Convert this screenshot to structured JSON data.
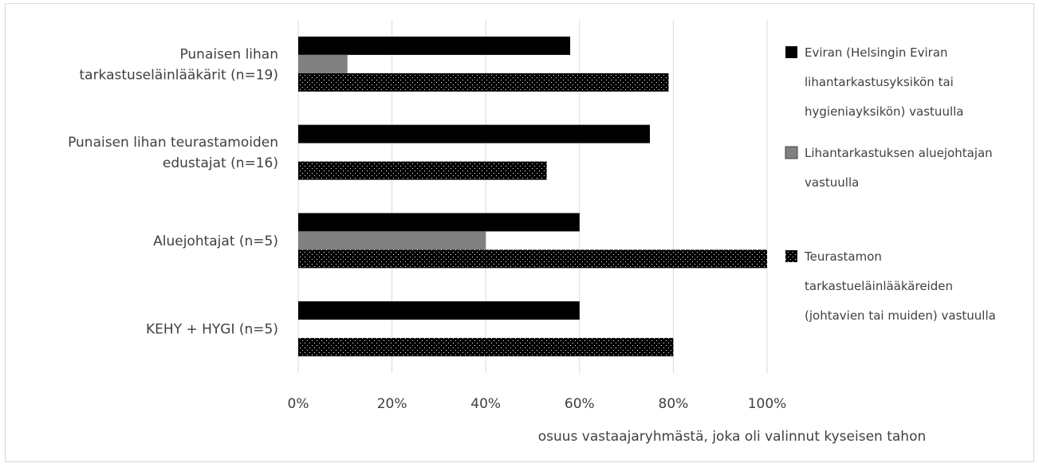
{
  "chart_data": {
    "type": "bar",
    "orientation": "horizontal",
    "categories": [
      [
        "Punaisen lihan",
        "tarkastuseläinlääkärit (n=19)"
      ],
      [
        "Punaisen lihan teurastamoiden",
        "edustajat (n=16)"
      ],
      [
        "Aluejohtajat (n=5)"
      ],
      [
        "KEHY + HYGI (n=5)"
      ]
    ],
    "series": [
      {
        "name": "Eviran (Helsingin Eviran lihantarkastusyksikön tai hygieniayksikön) vastuulla",
        "legend_lines": [
          "Eviran (Helsingin Eviran",
          "lihantarkastusyksikön tai",
          "hygieniayksikön) vastuulla"
        ],
        "values": [
          58,
          75,
          60,
          60
        ],
        "fill": "solid",
        "color": "#000000"
      },
      {
        "name": "Lihantarkastuksen aluejohtajan vastuulla",
        "legend_lines": [
          "Lihantarkastuksen aluejohtajan",
          "vastuulla"
        ],
        "values": [
          10.5,
          0,
          40,
          0
        ],
        "fill": "solid",
        "color": "#808080"
      },
      {
        "name": "Teurastamon tarkastueläinlääkäreiden (johtavien tai muiden) vastuulla",
        "legend_lines": [
          "Teurastamon",
          "tarkastueläinlääkäreiden",
          "(johtavien tai muiden) vastuulla"
        ],
        "values": [
          79,
          53,
          100,
          80
        ],
        "fill": "dotted",
        "color": "#000000"
      }
    ],
    "xticks": [
      "0%",
      "20%",
      "40%",
      "60%",
      "80%",
      "100%"
    ],
    "xlim": [
      0,
      100
    ],
    "xlabel": "osuus vastaajaryhmästä, joka oli valinnut kyseisen tahon",
    "grid": true,
    "legend_position": "right"
  }
}
